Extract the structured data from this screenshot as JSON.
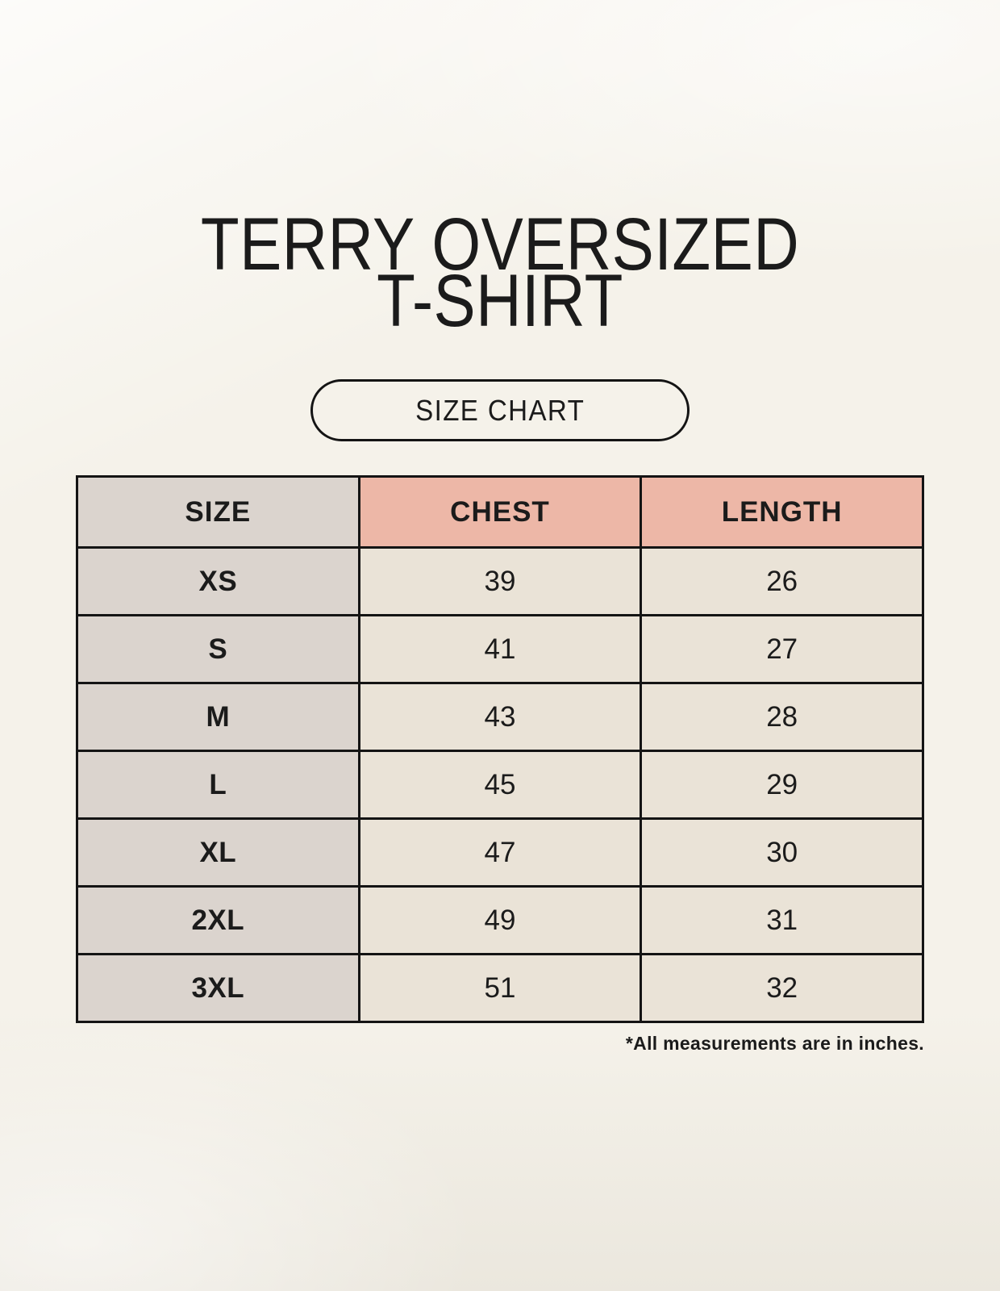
{
  "page": {
    "title_line1": "TERRY OVERSIZED",
    "title_line2": "T-SHIRT",
    "size_chart_button": "SIZE CHART",
    "footnote": "*All measurements are in inches."
  },
  "table": {
    "columns": [
      "SIZE",
      "CHEST",
      "LENGTH"
    ],
    "rows": [
      {
        "size": "XS",
        "chest": "39",
        "length": "26"
      },
      {
        "size": "S",
        "chest": "41",
        "length": "27"
      },
      {
        "size": "M",
        "chest": "43",
        "length": "28"
      },
      {
        "size": "L",
        "chest": "45",
        "length": "29"
      },
      {
        "size": "XL",
        "chest": "47",
        "length": "30"
      },
      {
        "size": "2XL",
        "chest": "49",
        "length": "31"
      },
      {
        "size": "3XL",
        "chest": "51",
        "length": "32"
      }
    ],
    "units": "inches"
  },
  "colors": {
    "background": "#f5f2ea",
    "size_column_fill": "#dbd4ce",
    "header_accent_fill": "#edb7a7",
    "cell_fill": "#eae3d7",
    "border": "#141414",
    "text": "#1b1b1b"
  }
}
